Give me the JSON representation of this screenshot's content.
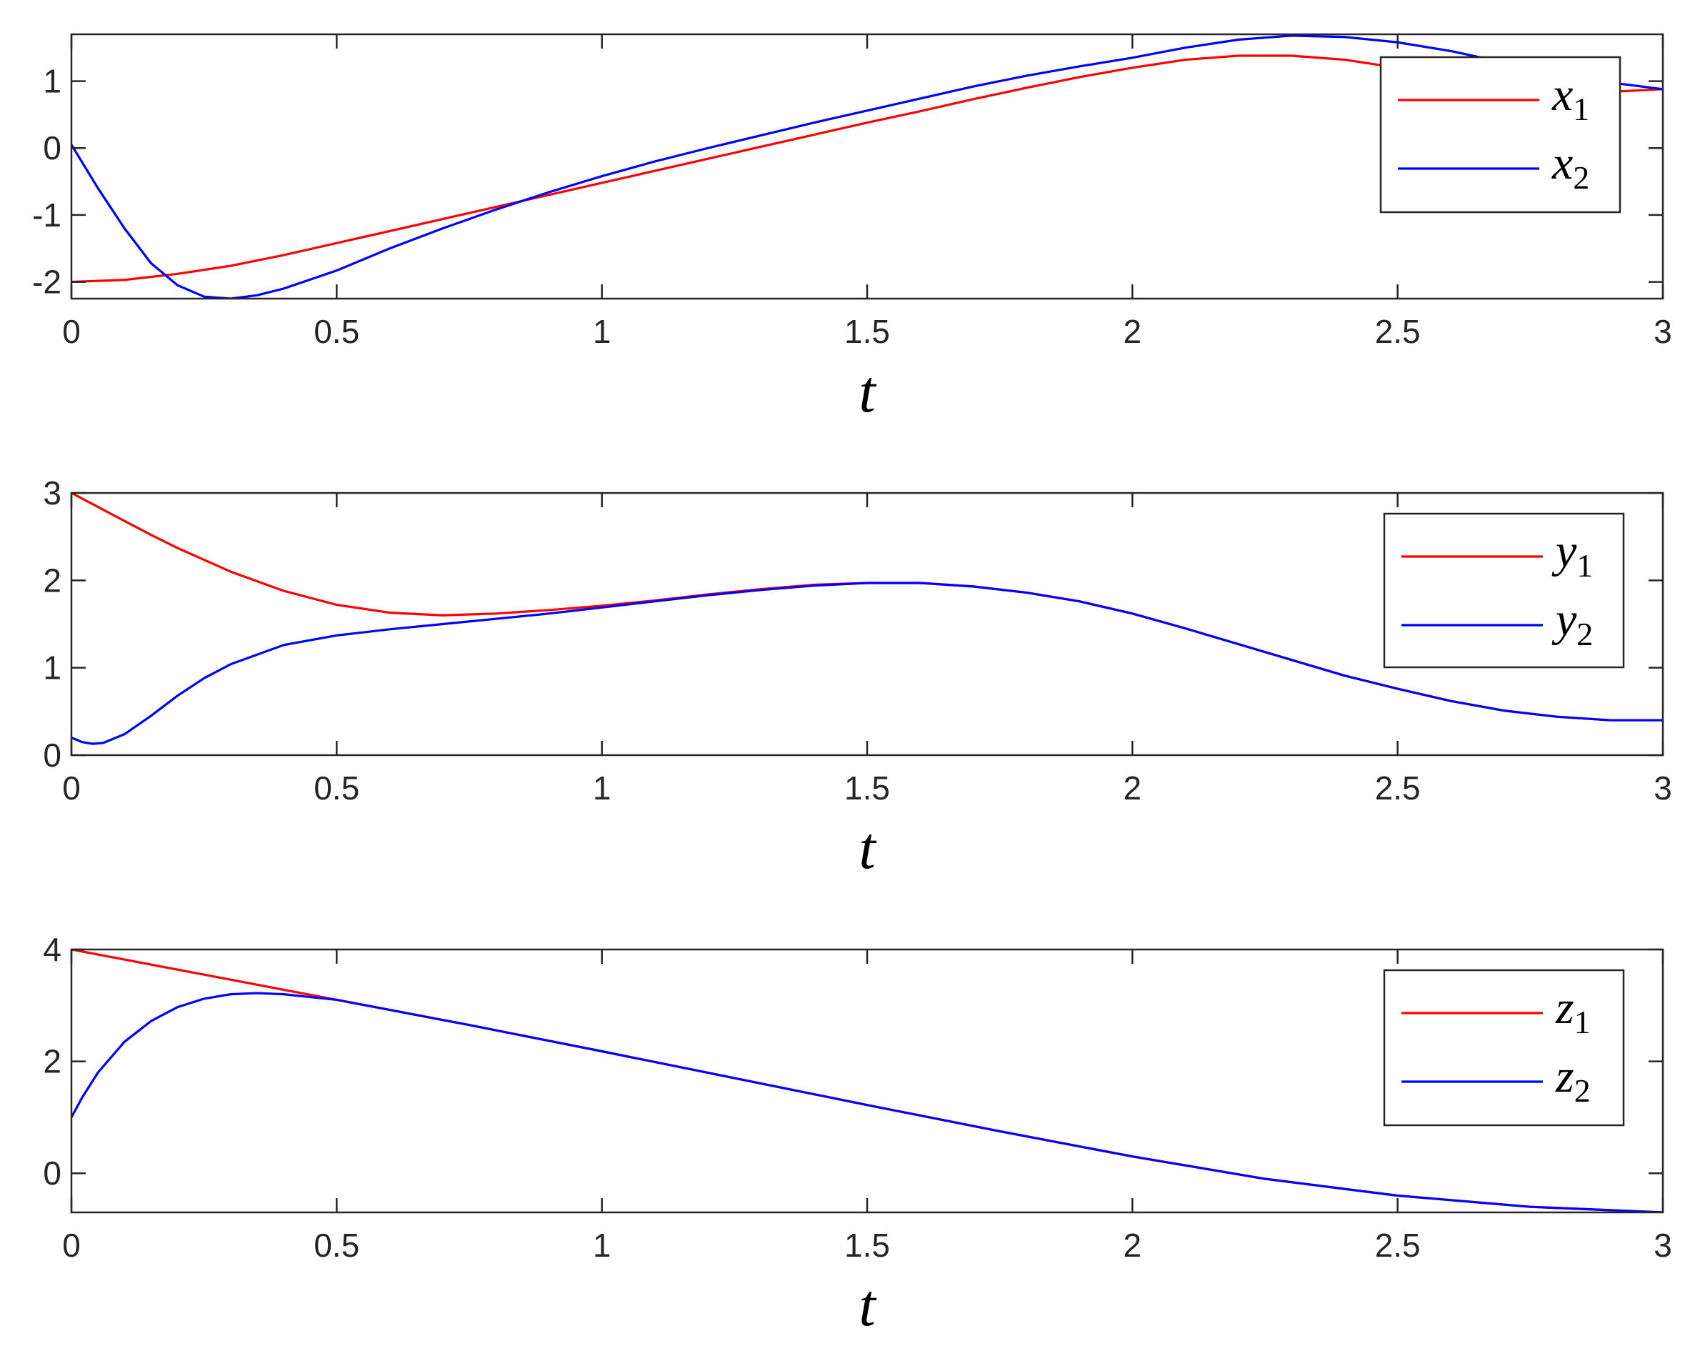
{
  "chart_data": [
    {
      "type": "line",
      "xlabel": "t",
      "xlim": [
        0,
        3
      ],
      "ylim": [
        -2.25,
        1.7
      ],
      "xticks": [
        "0",
        "0.5",
        "1",
        "1.5",
        "2",
        "2.5",
        "3"
      ],
      "yticks": [
        "-2",
        "-1",
        "0",
        "1"
      ],
      "grid": false,
      "legend_position": "top-right",
      "series": [
        {
          "name": "x1",
          "label_base": "x",
          "label_sub": "1",
          "color": "#ff0000",
          "x": [
            0,
            0.1,
            0.2,
            0.3,
            0.4,
            0.5,
            0.6,
            0.7,
            0.8,
            0.9,
            1.0,
            1.1,
            1.2,
            1.3,
            1.4,
            1.5,
            1.6,
            1.7,
            1.8,
            1.9,
            2.0,
            2.1,
            2.2,
            2.3,
            2.4,
            2.5,
            2.6,
            2.7,
            2.8,
            2.9,
            3.0
          ],
          "y": [
            -2.0,
            -1.97,
            -1.88,
            -1.76,
            -1.6,
            -1.42,
            -1.24,
            -1.06,
            -0.88,
            -0.7,
            -0.52,
            -0.34,
            -0.16,
            0.02,
            0.2,
            0.38,
            0.55,
            0.73,
            0.9,
            1.06,
            1.2,
            1.32,
            1.38,
            1.38,
            1.32,
            1.2,
            1.06,
            0.94,
            0.86,
            0.84,
            0.88
          ]
        },
        {
          "name": "x2",
          "label_base": "x",
          "label_sub": "2",
          "color": "#0000ff",
          "x": [
            0,
            0.05,
            0.1,
            0.15,
            0.2,
            0.25,
            0.3,
            0.35,
            0.4,
            0.5,
            0.6,
            0.7,
            0.8,
            0.9,
            1.0,
            1.1,
            1.2,
            1.3,
            1.4,
            1.5,
            1.6,
            1.7,
            1.8,
            1.9,
            2.0,
            2.1,
            2.2,
            2.3,
            2.4,
            2.5,
            2.6,
            2.7,
            2.8,
            2.9,
            3.0
          ],
          "y": [
            0.05,
            -0.6,
            -1.2,
            -1.72,
            -2.05,
            -2.22,
            -2.25,
            -2.2,
            -2.1,
            -1.83,
            -1.5,
            -1.2,
            -0.92,
            -0.66,
            -0.42,
            -0.2,
            0.0,
            0.19,
            0.38,
            0.56,
            0.74,
            0.92,
            1.08,
            1.22,
            1.35,
            1.5,
            1.62,
            1.68,
            1.66,
            1.58,
            1.45,
            1.28,
            1.12,
            0.98,
            0.88
          ]
        }
      ]
    },
    {
      "type": "line",
      "xlabel": "t",
      "xlim": [
        0,
        3
      ],
      "ylim": [
        0,
        3
      ],
      "xticks": [
        "0",
        "0.5",
        "1",
        "1.5",
        "2",
        "2.5",
        "3"
      ],
      "yticks": [
        "0",
        "1",
        "2",
        "3"
      ],
      "grid": false,
      "legend_position": "top-right",
      "series": [
        {
          "name": "y1",
          "label_base": "y",
          "label_sub": "1",
          "color": "#ff0000",
          "x": [
            0,
            0.05,
            0.1,
            0.15,
            0.2,
            0.3,
            0.4,
            0.5,
            0.6,
            0.7,
            0.8,
            0.9,
            1.0,
            1.1,
            1.2,
            1.3,
            1.4,
            1.5,
            1.6,
            1.7,
            1.8,
            1.9,
            2.0,
            2.1,
            2.2,
            2.3,
            2.4,
            2.5,
            2.6,
            2.7,
            2.8,
            2.9,
            3.0
          ],
          "y": [
            3.0,
            2.84,
            2.68,
            2.52,
            2.37,
            2.1,
            1.88,
            1.72,
            1.63,
            1.6,
            1.62,
            1.66,
            1.71,
            1.77,
            1.84,
            1.9,
            1.95,
            1.97,
            1.97,
            1.93,
            1.86,
            1.76,
            1.62,
            1.45,
            1.27,
            1.09,
            0.91,
            0.76,
            0.62,
            0.51,
            0.44,
            0.4,
            0.4
          ]
        },
        {
          "name": "y2",
          "label_base": "y",
          "label_sub": "2",
          "color": "#0000ff",
          "x": [
            0,
            0.02,
            0.04,
            0.06,
            0.1,
            0.15,
            0.2,
            0.25,
            0.3,
            0.4,
            0.5,
            0.6,
            0.7,
            0.8,
            0.9,
            1.0,
            1.1,
            1.2,
            1.3,
            1.4,
            1.5,
            1.6,
            1.7,
            1.8,
            1.9,
            2.0,
            2.1,
            2.2,
            2.3,
            2.4,
            2.5,
            2.6,
            2.7,
            2.8,
            2.9,
            3.0
          ],
          "y": [
            0.2,
            0.15,
            0.13,
            0.14,
            0.24,
            0.45,
            0.68,
            0.88,
            1.04,
            1.26,
            1.37,
            1.44,
            1.5,
            1.56,
            1.62,
            1.69,
            1.76,
            1.83,
            1.89,
            1.94,
            1.97,
            1.97,
            1.93,
            1.86,
            1.76,
            1.62,
            1.45,
            1.27,
            1.09,
            0.91,
            0.76,
            0.62,
            0.51,
            0.44,
            0.4,
            0.4
          ]
        }
      ]
    },
    {
      "type": "line",
      "xlabel": "t",
      "xlim": [
        0,
        3
      ],
      "ylim": [
        -0.7,
        4
      ],
      "xticks": [
        "0",
        "0.5",
        "1",
        "1.5",
        "2",
        "2.5",
        "3"
      ],
      "yticks": [
        "0",
        "2",
        "4"
      ],
      "grid": false,
      "legend_position": "top-right",
      "series": [
        {
          "name": "z1",
          "label_base": "z",
          "label_sub": "1",
          "color": "#ff0000",
          "x": [
            0,
            0.25,
            0.5,
            0.75,
            1.0,
            1.25,
            1.5,
            1.75,
            2.0,
            2.25,
            2.5,
            2.75,
            3.0
          ],
          "y": [
            4.0,
            3.55,
            3.1,
            2.65,
            2.18,
            1.7,
            1.22,
            0.75,
            0.3,
            -0.1,
            -0.4,
            -0.6,
            -0.7
          ]
        },
        {
          "name": "z2",
          "label_base": "z",
          "label_sub": "2",
          "color": "#0000ff",
          "x": [
            0,
            0.02,
            0.05,
            0.1,
            0.15,
            0.2,
            0.25,
            0.3,
            0.35,
            0.4,
            0.45,
            0.5,
            0.75,
            1.0,
            1.25,
            1.5,
            1.75,
            2.0,
            2.25,
            2.5,
            2.75,
            3.0
          ],
          "y": [
            1.0,
            1.35,
            1.8,
            2.35,
            2.72,
            2.97,
            3.12,
            3.2,
            3.22,
            3.2,
            3.15,
            3.1,
            2.65,
            2.18,
            1.7,
            1.22,
            0.75,
            0.3,
            -0.1,
            -0.4,
            -0.6,
            -0.7
          ]
        }
      ]
    }
  ]
}
